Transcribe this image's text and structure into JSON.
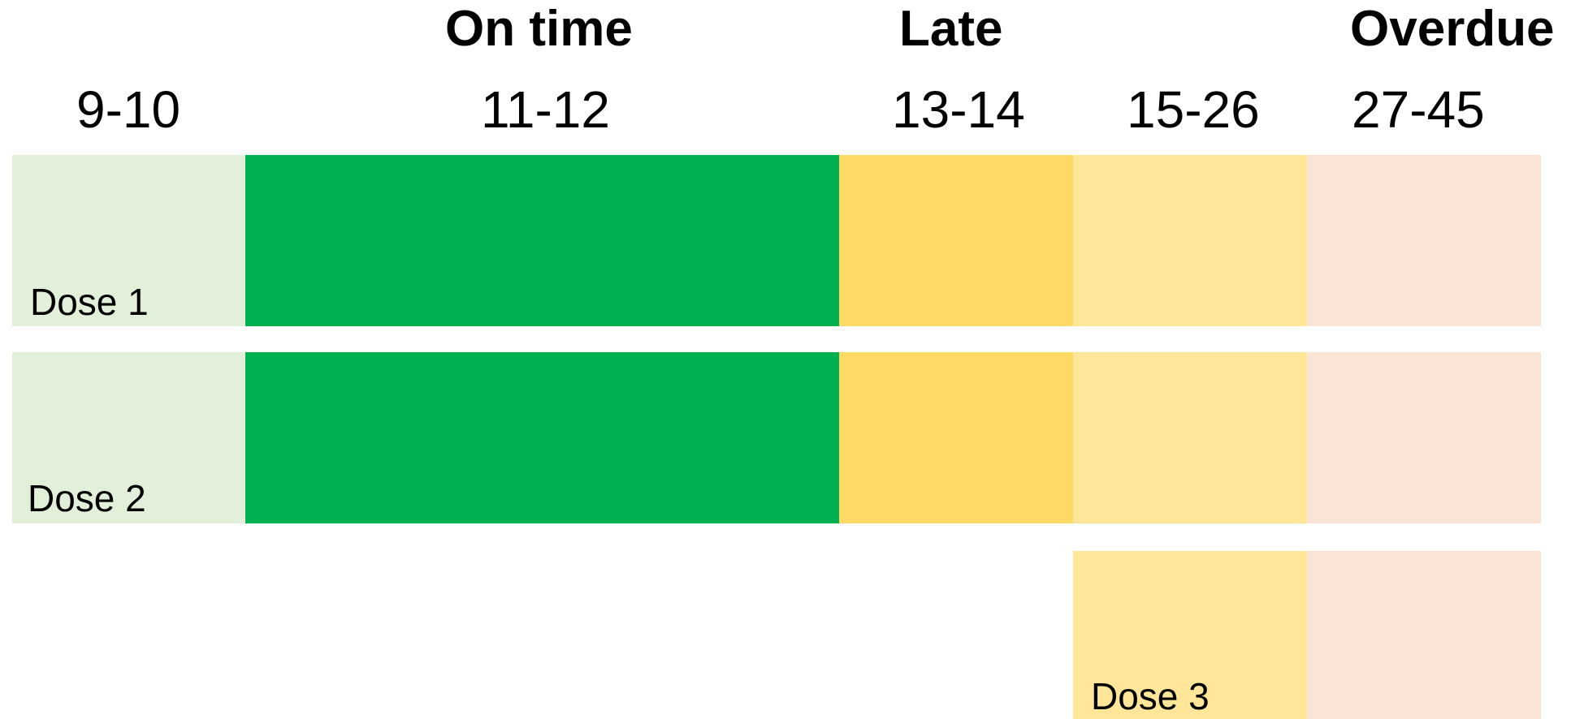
{
  "status_labels": {
    "on_time": "On time",
    "late": "Late",
    "overdue": "Overdue"
  },
  "ranges": [
    "9-10",
    "11-12",
    "13-14",
    "15-26",
    "27-45"
  ],
  "doses": [
    {
      "label": "Dose 1",
      "segments": [
        "early",
        "on_time",
        "late",
        "late_light",
        "overdue"
      ]
    },
    {
      "label": "Dose 2",
      "segments": [
        "early",
        "on_time",
        "late",
        "late_light",
        "overdue"
      ]
    },
    {
      "label": "Dose 3",
      "segments": [
        "late_light",
        "overdue"
      ]
    }
  ],
  "colors": {
    "early": "#e2efd9",
    "on_time": "#00b050",
    "late": "#ffd966",
    "late_light": "#ffe699",
    "overdue": "#fbe4d5"
  }
}
